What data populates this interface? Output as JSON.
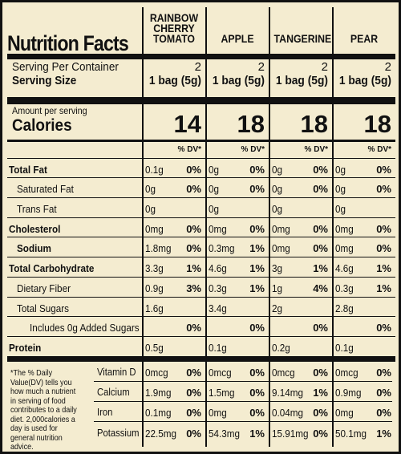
{
  "title": "Nutrition Facts",
  "columns": [
    {
      "name": "RAINBOW CHERRY TOMATO",
      "name_lines": [
        "RAINBOW",
        "CHERRY",
        "TOMATO"
      ],
      "servings": "2",
      "serving_size": "1 bag (5g)",
      "calories": "14"
    },
    {
      "name": "APPLE",
      "name_lines": [
        "APPLE"
      ],
      "servings": "2",
      "serving_size": "1 bag (5g)",
      "calories": "18"
    },
    {
      "name": "TANGERINE",
      "name_lines": [
        "TANGERINE"
      ],
      "servings": "2",
      "serving_size": "1 bag (5g)",
      "calories": "18"
    },
    {
      "name": "PEAR",
      "name_lines": [
        "PEAR"
      ],
      "servings": "2",
      "serving_size": "1 bag (5g)",
      "calories": "18"
    }
  ],
  "labels": {
    "servings_per_container": "Serving Per Container",
    "serving_size": "Serving Size",
    "amount_per_serving": "Amount per serving",
    "calories": "Calories",
    "dv_header": "% DV*"
  },
  "nutrients": [
    {
      "label": "Total Fat",
      "bold": true,
      "indent": 0,
      "cells": [
        [
          "0.1g",
          "0%"
        ],
        [
          "0g",
          "0%"
        ],
        [
          "0g",
          "0%"
        ],
        [
          "0g",
          "0%"
        ]
      ]
    },
    {
      "label": "Saturated Fat",
      "bold": false,
      "indent": 1,
      "cells": [
        [
          "0g",
          "0%"
        ],
        [
          "0g",
          "0%"
        ],
        [
          "0g",
          "0%"
        ],
        [
          "0g",
          "0%"
        ]
      ]
    },
    {
      "label": "Trans Fat",
      "bold": false,
      "indent": 1,
      "cells": [
        [
          "0g",
          ""
        ],
        [
          "0g",
          ""
        ],
        [
          "0g",
          ""
        ],
        [
          "0g",
          ""
        ]
      ]
    },
    {
      "label": "Cholesterol",
      "bold": true,
      "indent": 0,
      "cells": [
        [
          "0mg",
          "0%"
        ],
        [
          "0mg",
          "0%"
        ],
        [
          "0mg",
          "0%"
        ],
        [
          "0mg",
          "0%"
        ]
      ]
    },
    {
      "label": "Sodium",
      "bold": true,
      "indent": 1,
      "cells": [
        [
          "1.8mg",
          "0%"
        ],
        [
          "0.3mg",
          "1%"
        ],
        [
          "0mg",
          "0%"
        ],
        [
          "0mg",
          "0%"
        ]
      ]
    },
    {
      "label": "Total Carbohydrate",
      "bold": true,
      "indent": 0,
      "cells": [
        [
          "3.3g",
          "1%"
        ],
        [
          "4.6g",
          "1%"
        ],
        [
          "3g",
          "1%"
        ],
        [
          "4.6g",
          "1%"
        ]
      ]
    },
    {
      "label": "Dietary Fiber",
      "bold": false,
      "indent": 1,
      "cells": [
        [
          "0.9g",
          "3%"
        ],
        [
          "0.3g",
          "1%"
        ],
        [
          "1g",
          "4%"
        ],
        [
          "0.3g",
          "1%"
        ]
      ]
    },
    {
      "label": "Total Sugars",
      "bold": false,
      "indent": 1,
      "cells": [
        [
          "1.6g",
          ""
        ],
        [
          "3.4g",
          ""
        ],
        [
          "2g",
          ""
        ],
        [
          "2.8g",
          ""
        ]
      ]
    },
    {
      "label": "Includes 0g Added Sugars",
      "bold": false,
      "indent": 2,
      "cells": [
        [
          "",
          "0%"
        ],
        [
          "",
          "0%"
        ],
        [
          "",
          "0%"
        ],
        [
          "",
          "0%"
        ]
      ]
    },
    {
      "label": "Protein",
      "bold": true,
      "indent": 0,
      "cells": [
        [
          "0.5g",
          ""
        ],
        [
          "0.1g",
          ""
        ],
        [
          "0.2g",
          ""
        ],
        [
          "0.1g",
          ""
        ]
      ]
    }
  ],
  "footnote": "*The % Daily Value(DV) tells you how much a nutrient in serving of food contributes to a daily diet. 2,000calories a day is used for general nutrition advice.",
  "vitamins": [
    {
      "label": "Vitamin D",
      "cells": [
        [
          "0mcg",
          "0%"
        ],
        [
          "0mcg",
          "0%"
        ],
        [
          "0mcg",
          "0%"
        ],
        [
          "0mcg",
          "0%"
        ]
      ]
    },
    {
      "label": "Calcium",
      "cells": [
        [
          "1.9mg",
          "0%"
        ],
        [
          "1.5mg",
          "0%"
        ],
        [
          "9.14mg",
          "1%"
        ],
        [
          "0.9mg",
          "0%"
        ]
      ]
    },
    {
      "label": "Iron",
      "cells": [
        [
          "0.1mg",
          "0%"
        ],
        [
          "0mg",
          "0%"
        ],
        [
          "0.04mg",
          "0%"
        ],
        [
          "0mg",
          "0%"
        ]
      ]
    },
    {
      "label": "Potassium",
      "cells": [
        [
          "22.5mg",
          "0%"
        ],
        [
          "54.3mg",
          "1%"
        ],
        [
          "15.91mg",
          "0%"
        ],
        [
          "50.1mg",
          "1%"
        ]
      ]
    }
  ]
}
